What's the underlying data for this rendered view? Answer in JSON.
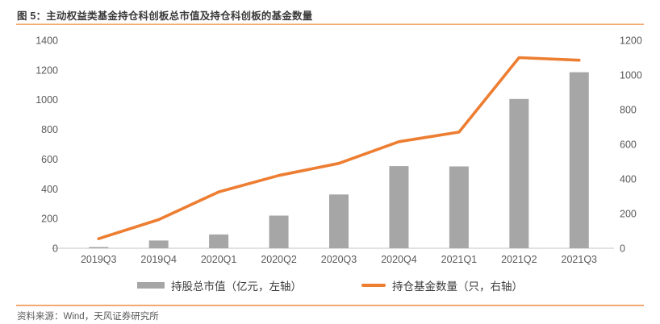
{
  "figure": {
    "title": "图 5：主动权益类基金持仓科创板总市值及持仓科创板的基金数量",
    "source": "资料来源：Wind，天风证券研究所"
  },
  "colors": {
    "bar": "#a6a6a6",
    "line": "#ed7d31",
    "divider": "#f2a871",
    "axis_text": "#595959",
    "baseline": "#d9d9d9",
    "title_text": "#3b3b3b"
  },
  "legend": [
    {
      "label": "持股总市值（亿元，左轴）",
      "color": "#a6a6a6",
      "shape": "bar"
    },
    {
      "label": "持仓基金数量（只，右轴）",
      "color": "#ed7d31",
      "shape": "line"
    }
  ],
  "chart_data": {
    "type": "bar",
    "title": "主动权益类基金持仓科创板总市值及持仓科创板的基金数量",
    "categories": [
      "2019Q3",
      "2019Q4",
      "2020Q1",
      "2020Q2",
      "2020Q3",
      "2020Q4",
      "2021Q1",
      "2021Q2",
      "2021Q3"
    ],
    "series": [
      {
        "name": "持股总市值（亿元，左轴）",
        "type": "bar",
        "axis": "left",
        "color": "#a6a6a6",
        "values": [
          8,
          52,
          93,
          220,
          362,
          553,
          551,
          1005,
          1185
        ]
      },
      {
        "name": "持仓基金数量（只，右轴）",
        "type": "line",
        "axis": "right",
        "color": "#ed7d31",
        "values": [
          55,
          165,
          325,
          420,
          490,
          615,
          670,
          1100,
          1085
        ]
      }
    ],
    "left_axis": {
      "min": 0,
      "max": 1400,
      "step": 200,
      "ticks": [
        0,
        200,
        400,
        600,
        800,
        1000,
        1200,
        1400
      ]
    },
    "right_axis": {
      "min": 0,
      "max": 1200,
      "step": 200,
      "ticks": [
        0,
        200,
        400,
        600,
        800,
        1000,
        1200
      ]
    },
    "grid": false,
    "legend_position": "bottom",
    "xlabel": "",
    "ylabel_left": "亿元",
    "ylabel_right": "只"
  }
}
